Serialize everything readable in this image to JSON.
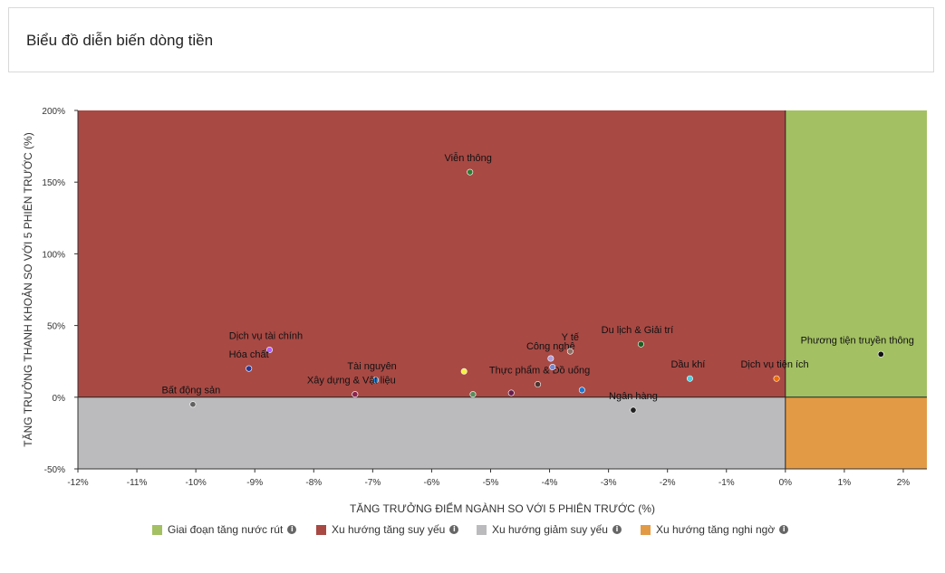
{
  "header": {
    "title": "Biểu đồ diễn biến dòng tiền"
  },
  "legend": [
    {
      "label": "Giai đoạn tăng nước rút",
      "color": "#a3c063",
      "icon": "info-icon"
    },
    {
      "label": "Xu hướng tăng suy yếu",
      "color": "#a84944",
      "icon": "info-icon"
    },
    {
      "label": "Xu hướng giảm suy yếu",
      "color": "#bbbbbd",
      "icon": "info-icon"
    },
    {
      "label": "Xu hướng tăng nghi ngờ",
      "color": "#e39a45",
      "icon": "info-icon"
    }
  ],
  "chart_data": {
    "type": "scatter",
    "xlabel": "TĂNG TRƯỞNG ĐIỂM NGÀNH SO VỚI 5 PHIÊN TRƯỚC (%)",
    "ylabel": "TĂNG TRƯỞNG THANH KHOẢN SO VỚI 5 PHIÊN TRƯỚC (%)",
    "xlim": [
      -12,
      2.4
    ],
    "ylim": [
      -50,
      200
    ],
    "xticks": [
      "-12%",
      "-11%",
      "-10%",
      "-9%",
      "-8%",
      "-7%",
      "-6%",
      "-5%",
      "-4%",
      "-3%",
      "-2%",
      "-1%",
      "0%",
      "1%",
      "2%"
    ],
    "yticks": [
      "-50%",
      "0%",
      "50%",
      "100%",
      "150%",
      "200%"
    ],
    "quadrants": {
      "top_right": "#a3c063",
      "top_left": "#a84944",
      "bottom_left": "#bbbbbd",
      "bottom_right": "#e39a45"
    },
    "grid": false,
    "points": [
      {
        "name": "Viễn thông",
        "x": -5.35,
        "y": 157,
        "color": "#2e7d32"
      },
      {
        "name": "Dịch vụ tài chính",
        "x": -8.75,
        "y": 33,
        "color": "#b061ff"
      },
      {
        "name": "Hóa chất",
        "x": -9.1,
        "y": 20,
        "color": "#283593"
      },
      {
        "name": "Bất động sản",
        "x": -10.05,
        "y": -5,
        "color": "#616161"
      },
      {
        "name": "Tài nguyên",
        "x": -6.95,
        "y": 12,
        "color": "#1e88e5"
      },
      {
        "name": "Xây dựng & Vật liệu",
        "x": -7.3,
        "y": 2,
        "color": "#8e244d"
      },
      {
        "name": "",
        "x": -5.45,
        "y": 18,
        "color": "#f4f142"
      },
      {
        "name": "",
        "x": -5.3,
        "y": 2,
        "color": "#5b8c5a"
      },
      {
        "name": "",
        "x": -4.65,
        "y": 3,
        "color": "#6a1b4d"
      },
      {
        "name": "Thực phẩm & Đồ uống",
        "x": -4.2,
        "y": 9,
        "color": "#4e342e"
      },
      {
        "name": "Công nghệ",
        "x": -3.98,
        "y": 27,
        "color": "#b39ddb"
      },
      {
        "name": "",
        "x": -3.95,
        "y": 21,
        "color": "#7986cb"
      },
      {
        "name": "Y tế",
        "x": -3.65,
        "y": 32,
        "color": "#8d6e63"
      },
      {
        "name": "",
        "x": -3.45,
        "y": 5,
        "color": "#1976d2"
      },
      {
        "name": "Du lịch & Giải trí",
        "x": -2.45,
        "y": 37,
        "color": "#1b5e20"
      },
      {
        "name": "Ngân hàng",
        "x": -2.58,
        "y": -9,
        "color": "#212121"
      },
      {
        "name": "Dầu khí",
        "x": -1.62,
        "y": 13,
        "color": "#4dd0e1"
      },
      {
        "name": "Dịch vụ tiện ích",
        "x": -0.15,
        "y": 13,
        "color": "#ef6c00"
      },
      {
        "name": "Phương tiện truyền thông",
        "x": 1.62,
        "y": 30,
        "color": "#111111"
      }
    ]
  }
}
